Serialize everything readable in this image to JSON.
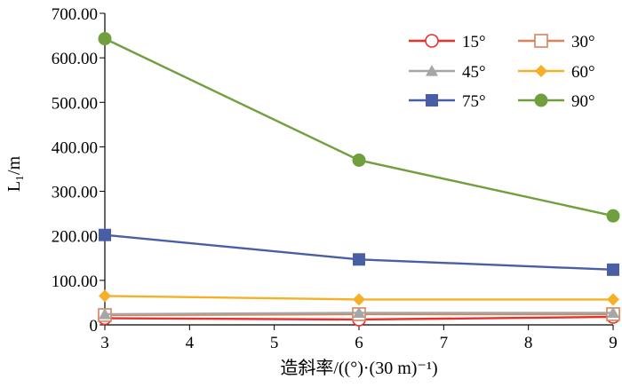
{
  "chart_data": {
    "type": "line",
    "xlabel": "造斜率/((°)·(30 m)⁻¹)",
    "ylabel": "L₁/m",
    "xlim": [
      3,
      9
    ],
    "ylim": [
      0,
      700
    ],
    "x_ticks": [
      "3",
      "4",
      "5",
      "6",
      "7",
      "8",
      "9"
    ],
    "y_ticks": [
      "0",
      "100.00",
      "200.00",
      "300.00",
      "400.00",
      "500.00",
      "600.00",
      "700.00"
    ],
    "grid": false,
    "legend_position": "top-right",
    "series": [
      {
        "name": "15°",
        "marker": "circle-open",
        "color": "#e8312a",
        "points": [
          [
            3,
            15
          ],
          [
            6,
            12
          ],
          [
            9,
            18
          ]
        ]
      },
      {
        "name": "30°",
        "marker": "square-open",
        "color": "#d9825b",
        "points": [
          [
            3,
            22
          ],
          [
            6,
            24
          ],
          [
            9,
            24
          ]
        ]
      },
      {
        "name": "45°",
        "marker": "triangle",
        "color": "#a6a6a6",
        "points": [
          [
            3,
            24
          ],
          [
            6,
            27
          ],
          [
            9,
            27
          ]
        ]
      },
      {
        "name": "60°",
        "marker": "diamond",
        "color": "#f5b027",
        "points": [
          [
            3,
            65
          ],
          [
            6,
            57
          ],
          [
            9,
            57
          ]
        ]
      },
      {
        "name": "75°",
        "marker": "square",
        "color": "#4a5ea6",
        "points": [
          [
            3,
            202
          ],
          [
            6,
            147
          ],
          [
            9,
            124
          ]
        ]
      },
      {
        "name": "90°",
        "marker": "circle",
        "color": "#70a03e",
        "points": [
          [
            3,
            643
          ],
          [
            6,
            370
          ],
          [
            9,
            245
          ]
        ]
      }
    ]
  }
}
